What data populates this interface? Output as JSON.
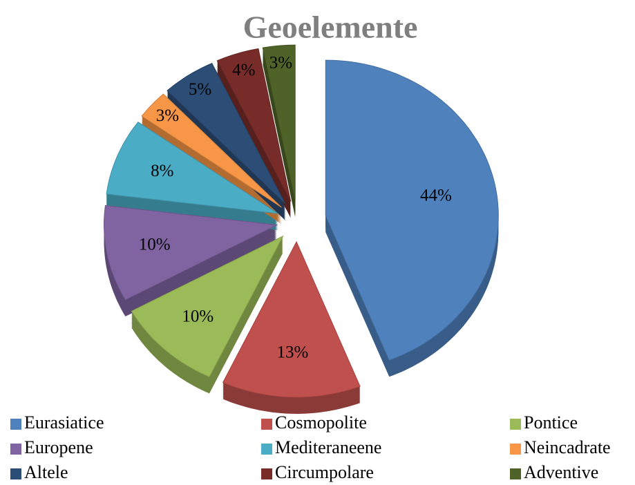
{
  "chart_data": {
    "type": "pie",
    "title": "Geoelemente",
    "categories": [
      "Eurasiatice",
      "Cosmopolite",
      "Pontice",
      "Europene",
      "Mediteraneene",
      "Neincadrate",
      "Altele",
      "Circumpolare",
      "Adventive"
    ],
    "values": [
      44,
      13,
      10,
      10,
      8,
      3,
      5,
      4,
      3
    ],
    "value_labels": [
      "44%",
      "13%",
      "10%",
      "10%",
      "8%",
      "3%",
      "5%",
      "4%",
      "3%"
    ],
    "colors": [
      "#4f81bd",
      "#c0504d",
      "#9bbb59",
      "#8064a2",
      "#4bacc6",
      "#f79646",
      "#2c4d75",
      "#772c2a",
      "#4f6228"
    ],
    "legend": "bottom"
  }
}
